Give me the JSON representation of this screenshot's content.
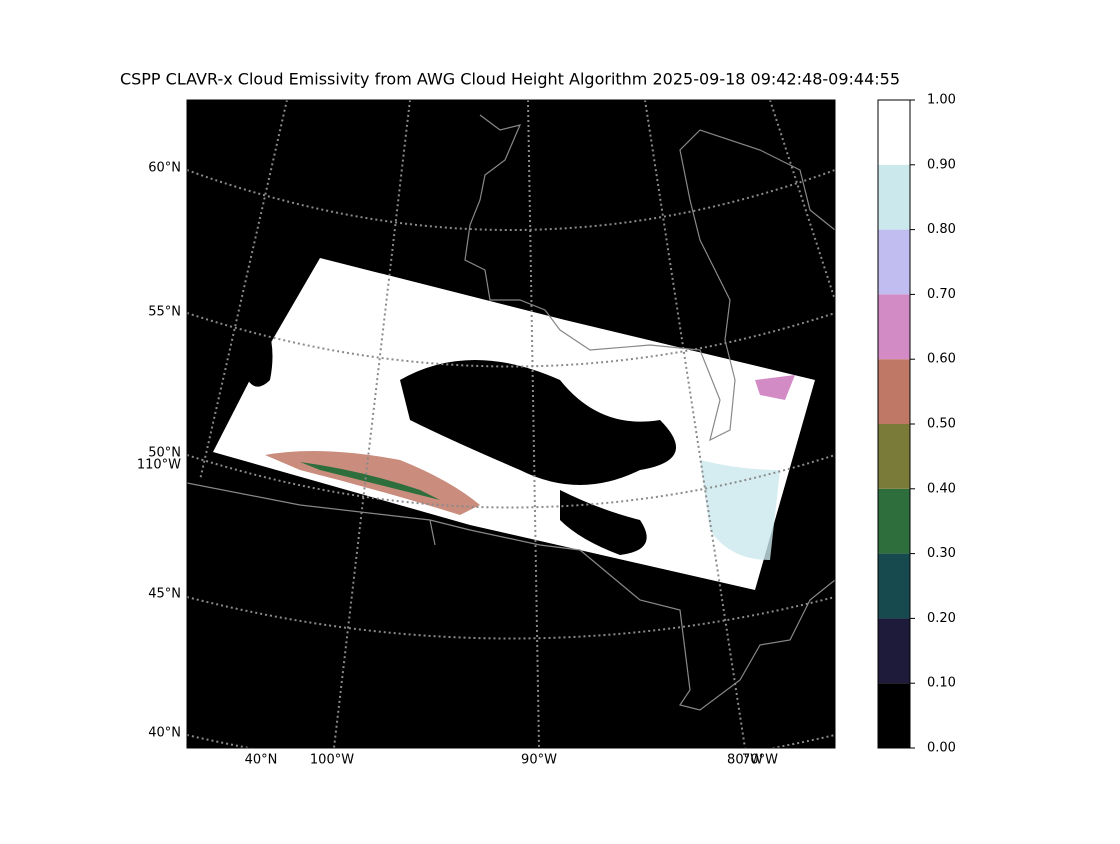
{
  "title": "CSPP CLAVR-x Cloud Emissivity from AWG Cloud Height Algorithm 2025-09-18 09:42:48-09:44:55",
  "map": {
    "lat_labels": [
      "60°N",
      "55°N",
      "50°N",
      "45°N",
      "40°N"
    ],
    "lon_label_left": "110°W",
    "bottom_labels": [
      "40°N",
      "100°W",
      "90°W",
      "80°W",
      "70°W"
    ]
  },
  "colorbar": {
    "ticks": [
      {
        "value": 0,
        "label": "0.00"
      },
      {
        "value": 0.1,
        "label": "0.10"
      },
      {
        "value": 0.2,
        "label": "0.20"
      },
      {
        "value": 0.3,
        "label": "0.30"
      },
      {
        "value": 0.4,
        "label": "0.40"
      },
      {
        "value": 0.5,
        "label": "0.50"
      },
      {
        "value": 0.6,
        "label": "0.60"
      },
      {
        "value": 0.7,
        "label": "0.70"
      },
      {
        "value": 0.8,
        "label": "0.80"
      },
      {
        "value": 0.9,
        "label": "0.90"
      },
      {
        "value": 1,
        "label": "1.00"
      }
    ],
    "colors": [
      "#000000",
      "#1e1a3a",
      "#174a4f",
      "#2d6e3c",
      "#7a7b38",
      "#c07866",
      "#d38bc6",
      "#c2bdf0",
      "#cbe8ec",
      "#ffffff"
    ],
    "lim": [
      0,
      1
    ]
  }
}
